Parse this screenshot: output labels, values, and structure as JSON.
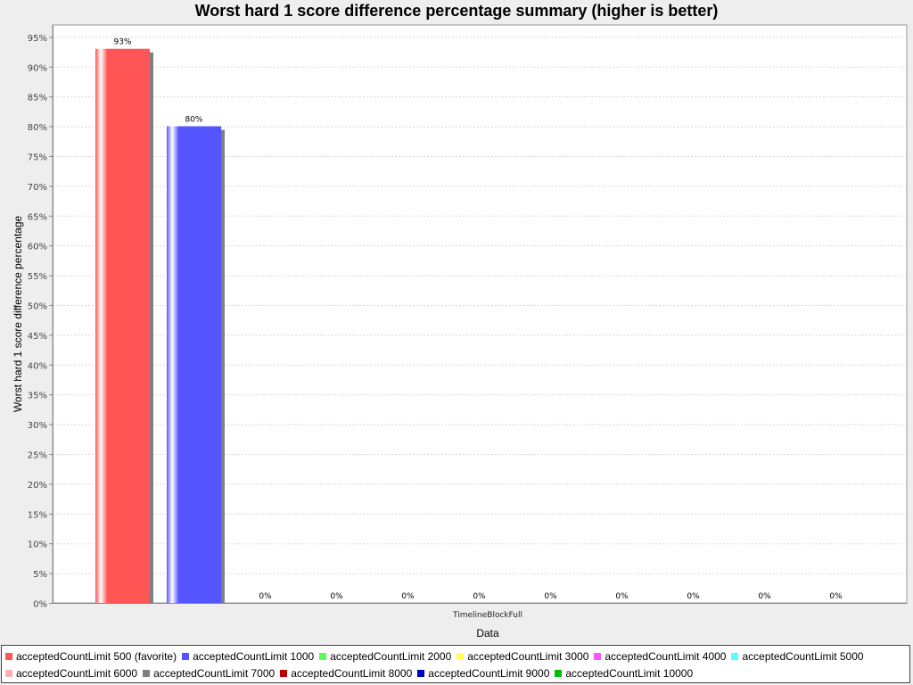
{
  "chart_data": {
    "type": "bar",
    "title": "Worst hard 1 score difference percentage summary (higher is better)",
    "xlabel": "Data",
    "ylabel": "Worst hard 1 score difference percentage",
    "categories": [
      "TimelineBlockFull"
    ],
    "ylim": [
      0,
      97
    ],
    "yticks": [
      0,
      5,
      10,
      15,
      20,
      25,
      30,
      35,
      40,
      45,
      50,
      55,
      60,
      65,
      70,
      75,
      80,
      85,
      90,
      95
    ],
    "ytick_suffix": "%",
    "grid": true,
    "legend_position": "bottom",
    "series": [
      {
        "name": "acceptedCountLimit 500 (favorite)",
        "values": [
          93
        ],
        "label": "93%",
        "color": "#ff5555"
      },
      {
        "name": "acceptedCountLimit 1000",
        "values": [
          80
        ],
        "label": "80%",
        "color": "#5555ff"
      },
      {
        "name": "acceptedCountLimit 2000",
        "values": [
          0
        ],
        "label": "0%",
        "color": "#55ff55"
      },
      {
        "name": "acceptedCountLimit 3000",
        "values": [
          0
        ],
        "label": "0%",
        "color": "#ffff55"
      },
      {
        "name": "acceptedCountLimit 4000",
        "values": [
          0
        ],
        "label": "0%",
        "color": "#ff55ff"
      },
      {
        "name": "acceptedCountLimit 5000",
        "values": [
          0
        ],
        "label": "0%",
        "color": "#55ffff"
      },
      {
        "name": "acceptedCountLimit 6000",
        "values": [
          0
        ],
        "label": "0%",
        "color": "#ffafaf"
      },
      {
        "name": "acceptedCountLimit 7000",
        "values": [
          0
        ],
        "label": "0%",
        "color": "#808080"
      },
      {
        "name": "acceptedCountLimit 8000",
        "values": [
          0
        ],
        "label": "0%",
        "color": "#c00000"
      },
      {
        "name": "acceptedCountLimit 9000",
        "values": [
          0
        ],
        "label": "0%",
        "color": "#0000c0"
      },
      {
        "name": "acceptedCountLimit 10000",
        "values": [
          0
        ],
        "label": "0%",
        "color": "#00c000"
      }
    ]
  }
}
